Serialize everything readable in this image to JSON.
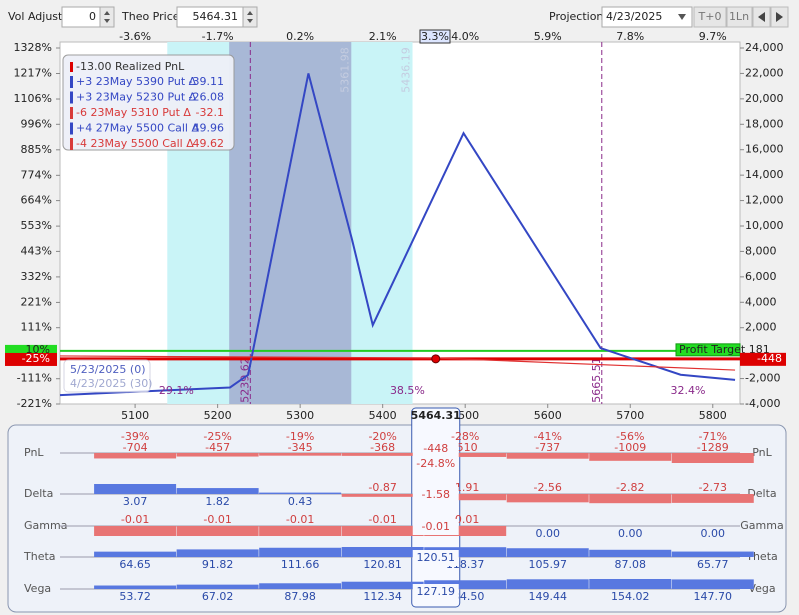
{
  "toolbar": {
    "vol_adjust_label": "Vol Adjust",
    "vol_adjust": "0",
    "theo_price_label": "Theo Price",
    "theo_price": "5464.31",
    "projection_label": "Projection",
    "projection_date": "4/23/2025",
    "buttons": [
      "T+0",
      "1Ln"
    ]
  },
  "chart_data": {
    "type": "line",
    "xlim": [
      5009,
      5833
    ],
    "xticks": [
      5100,
      5200,
      5300,
      5400,
      5500,
      5600,
      5700,
      5800
    ],
    "move_labels": [
      "-3.6%",
      "-1.7%",
      "0.2%",
      "2.1%",
      "4.0%",
      "5.9%",
      "7.8%",
      "9.7%"
    ],
    "current_move": "3.3%",
    "ylim": [
      -4000,
      24000
    ],
    "yticks": [
      {
        "value": 24000,
        "label": "24,000"
      },
      {
        "value": 22000,
        "label": "22,000"
      },
      {
        "value": 20000,
        "label": "20,000"
      },
      {
        "value": 18000,
        "label": "18,000"
      },
      {
        "value": 16000,
        "label": "16,000"
      },
      {
        "value": 14000,
        "label": "14,000"
      },
      {
        "value": 12000,
        "label": "12,000"
      },
      {
        "value": 10000,
        "label": "10,000"
      },
      {
        "value": 8000,
        "label": "8,000"
      },
      {
        "value": 6000,
        "label": "6,000"
      },
      {
        "value": 4000,
        "label": "4,000"
      },
      {
        "value": 2000,
        "label": "2,000"
      },
      {
        "value": -2000,
        "label": "-2,000"
      },
      {
        "value": -4000,
        "label": "-4,000"
      }
    ],
    "y2lim": [
      -221,
      1328
    ],
    "y2ticks": [
      {
        "value": 1328,
        "label": "1328%"
      },
      {
        "value": 1217,
        "label": "1217%"
      },
      {
        "value": 1106,
        "label": "1106%"
      },
      {
        "value": 996,
        "label": "996%"
      },
      {
        "value": 885,
        "label": "885%"
      },
      {
        "value": 774,
        "label": "774%"
      },
      {
        "value": 664,
        "label": "664%"
      },
      {
        "value": 553,
        "label": "553%"
      },
      {
        "value": 443,
        "label": "443%"
      },
      {
        "value": 332,
        "label": "332%"
      },
      {
        "value": 221,
        "label": "221%"
      },
      {
        "value": 111,
        "label": "111%"
      },
      {
        "value": -111,
        "label": "-111%"
      },
      {
        "value": -221,
        "label": "-221%"
      }
    ],
    "series": [
      {
        "color": "#3447c4",
        "x": [
          5009,
          5215,
          5237,
          5310,
          5363,
          5388,
          5498,
          5664,
          5761,
          5827
        ],
        "values": [
          -3300,
          -2700,
          -1700,
          22000,
          8900,
          2200,
          17300,
          400,
          -1700,
          -2100
        ]
      },
      {
        "color": "#e03030",
        "x": [
          5009,
          5464.31,
          5827
        ],
        "values": [
          -220,
          -380,
          -1330
        ]
      }
    ],
    "bands": [
      {
        "from": 5139,
        "to": 5436.19,
        "color": "#c9f4f7"
      },
      {
        "from": 5214,
        "to": 5361.98,
        "color": "#a8b8d6"
      }
    ],
    "vlines": [
      5239.62,
      5665.51
    ],
    "profit_target_label": "Profit Target",
    "profit_target": 181,
    "profit_target_pct": {
      "value": 10,
      "label": "10%"
    },
    "current_pnl": -448,
    "current_pnl_pct": {
      "value": -25,
      "label": "-25%"
    },
    "region_labels": [
      "29.1%",
      "38.5%",
      "32.4%"
    ],
    "region_x": [
      5150,
      5430,
      5770
    ],
    "date_legend": [
      "5/23/2025 (0)",
      "4/23/2025 (30)"
    ],
    "legend": {
      "realized": "-13.00 Realized PnL",
      "rows": [
        {
          "text": "+3 23May 5390 Put Δ",
          "delta": -39.11,
          "color": "#3447c4"
        },
        {
          "text": "+3 23May 5230 Put Δ",
          "delta": -26.08,
          "color": "#3447c4"
        },
        {
          "text": "-6 23May 5310 Put Δ",
          "delta": -32.1,
          "color": "#d83a3a"
        },
        {
          "text": "+4 27May 5500 Call Δ",
          "delta": 49.96,
          "color": "#3447c4"
        },
        {
          "text": "-4 23May 5500 Call Δ",
          "delta": 49.62,
          "color": "#d83a3a"
        }
      ]
    }
  },
  "greeks": {
    "rows": [
      {
        "label": "PnL",
        "pct": [
          "-39%",
          "-25%",
          "-19%",
          "-20%",
          "-28%",
          "-41%",
          "-56%",
          "-71%"
        ],
        "values": [
          "-704",
          "-457",
          "-345",
          "-368",
          "-510",
          "-737",
          "-1009",
          "-1289"
        ],
        "current": "-448",
        "current_pct": "-24.8%"
      },
      {
        "label": "Delta",
        "values": [
          "3.07",
          "1.82",
          "0.43",
          "-0.87",
          "-1.91",
          "-2.56",
          "-2.82",
          "-2.73"
        ],
        "current": "-1.58"
      },
      {
        "label": "Gamma",
        "values": [
          "-0.01",
          "-0.01",
          "-0.01",
          "-0.01",
          "-0.01",
          "0.00",
          "0.00",
          "0.00"
        ],
        "current": "-0.01"
      },
      {
        "label": "Theta",
        "values": [
          "64.65",
          "91.82",
          "111.66",
          "120.81",
          "118.37",
          "105.97",
          "87.08",
          "65.77"
        ],
        "current": "120.51"
      },
      {
        "label": "Vega",
        "values": [
          "53.72",
          "67.02",
          "87.98",
          "112.34",
          "134.50",
          "149.44",
          "154.02",
          "147.70"
        ],
        "current": "127.19"
      }
    ]
  }
}
